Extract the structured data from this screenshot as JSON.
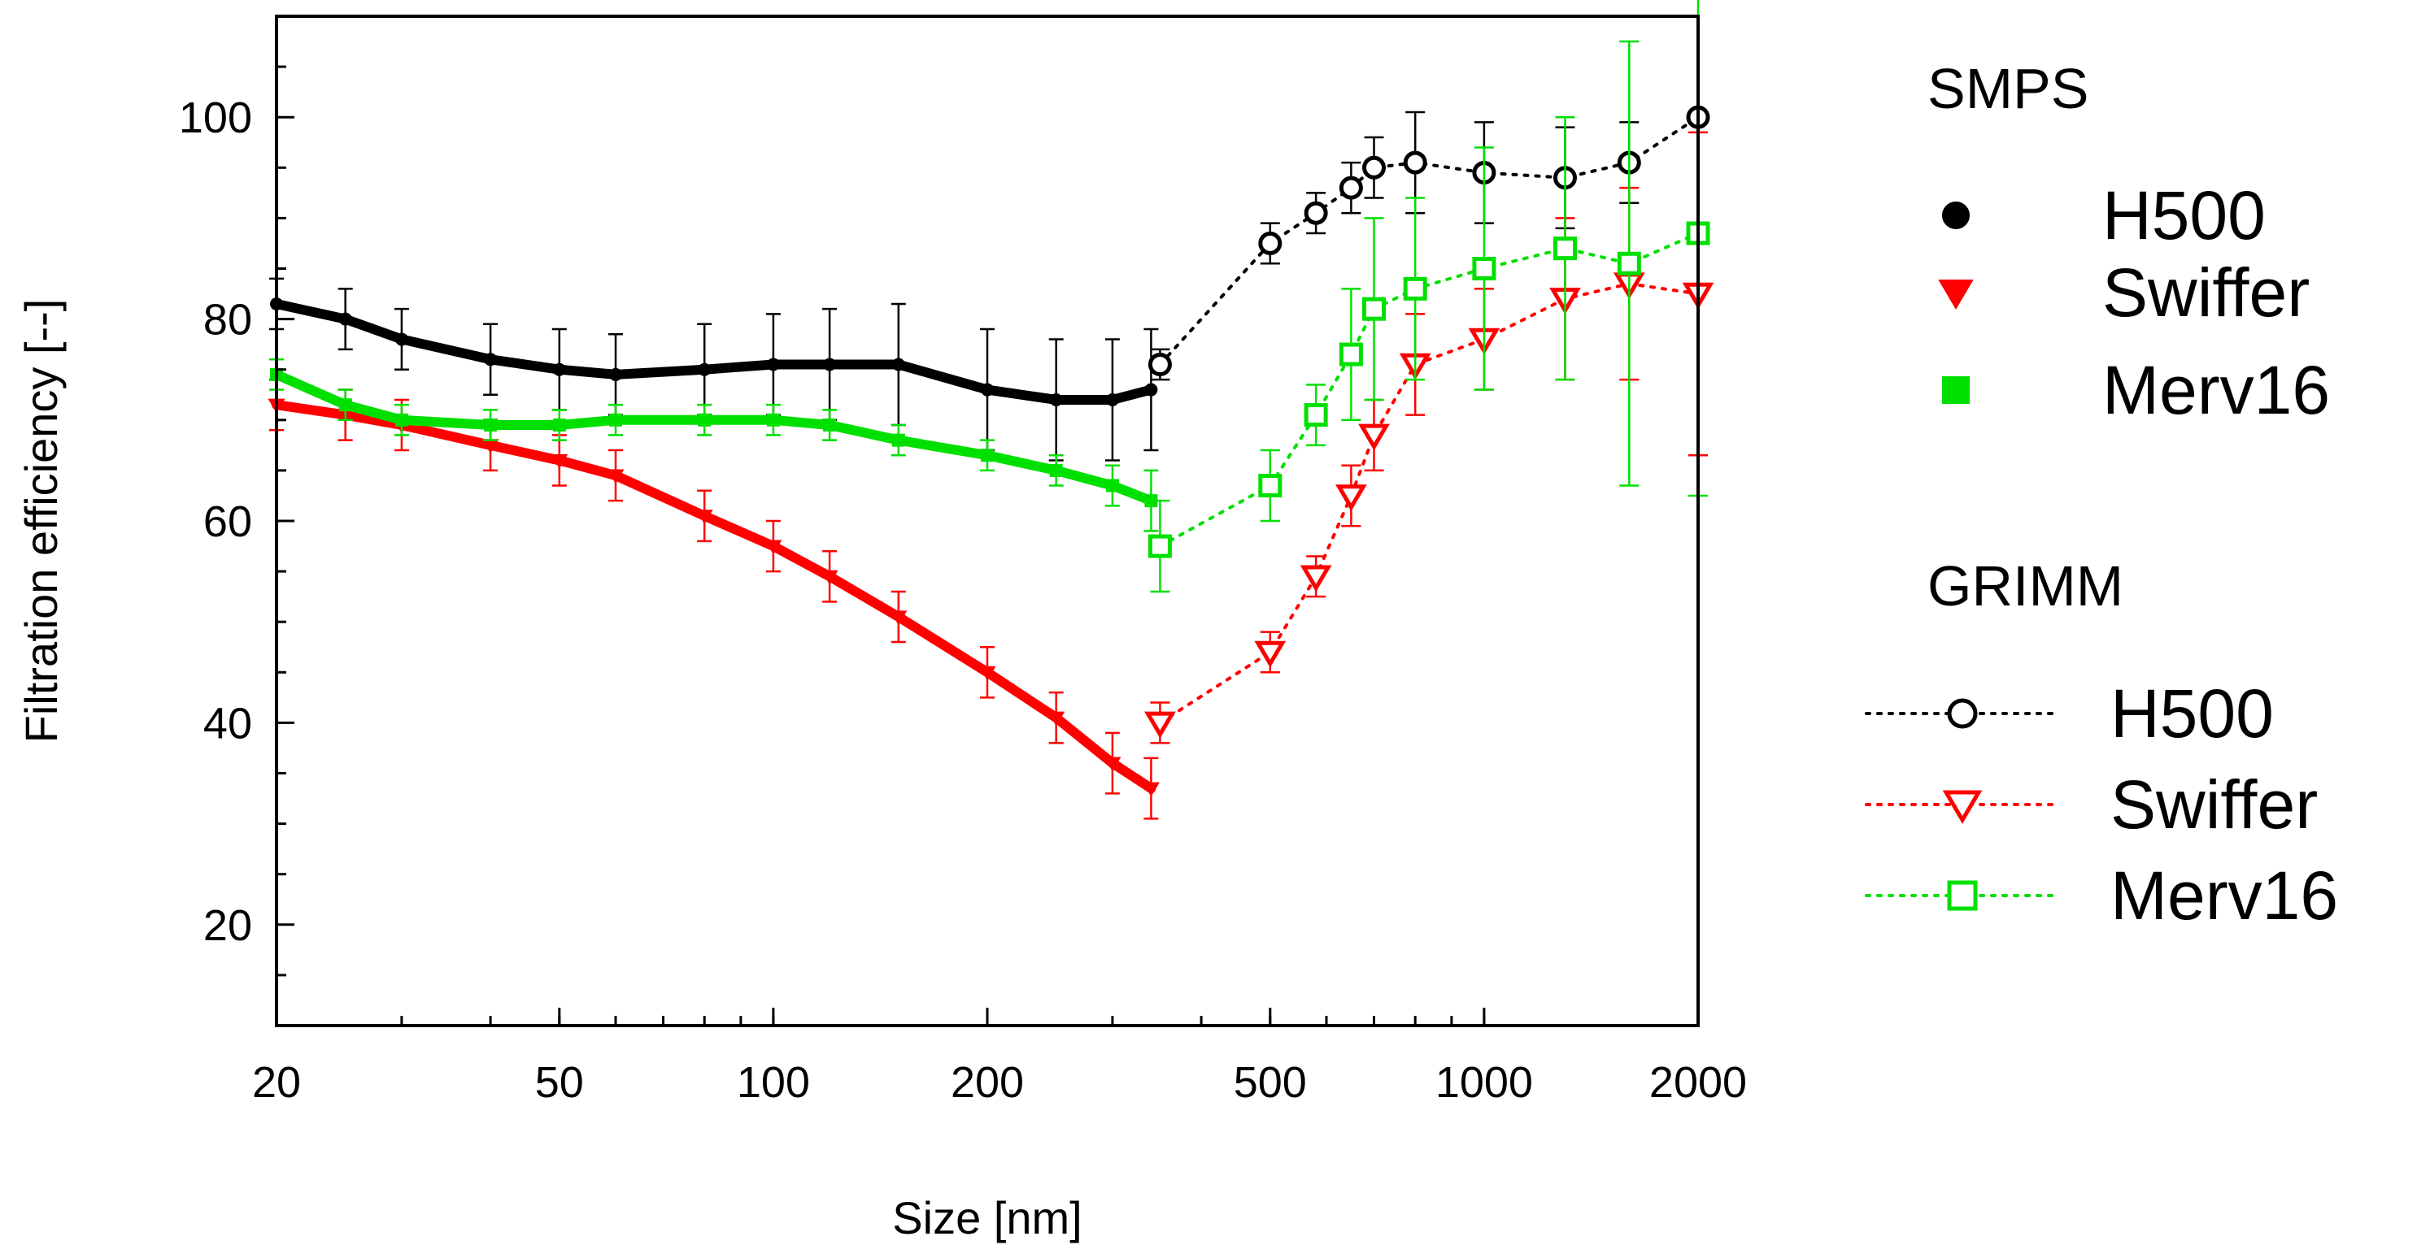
{
  "chart_data": {
    "type": "scatter",
    "title": "",
    "xlabel": "Size [nm]",
    "ylabel": "Filtration efficiency [--]",
    "xscale": "log",
    "xlim": [
      20,
      2000
    ],
    "ylim": [
      10,
      110
    ],
    "xticks": [
      20,
      50,
      100,
      200,
      500,
      1000,
      2000
    ],
    "yticks": [
      20,
      40,
      60,
      80,
      100
    ],
    "grid": false,
    "legend_position": "right",
    "legend_groups": [
      {
        "title": "SMPS",
        "entries": [
          {
            "name": "H500",
            "color": "#000000",
            "marker": "circle",
            "filled": true,
            "line": false
          },
          {
            "name": "Swiffer",
            "color": "#ff0000",
            "marker": "triangle-down",
            "filled": true,
            "line": false
          },
          {
            "name": "Merv16",
            "color": "#00e000",
            "marker": "square",
            "filled": true,
            "line": false
          }
        ]
      },
      {
        "title": "GRIMM",
        "entries": [
          {
            "name": "H500",
            "color": "#000000",
            "marker": "circle",
            "filled": false,
            "line": true
          },
          {
            "name": "Swiffer",
            "color": "#ff0000",
            "marker": "triangle-down",
            "filled": false,
            "line": true
          },
          {
            "name": "Merv16",
            "color": "#00e000",
            "marker": "square",
            "filled": false,
            "line": true
          }
        ]
      }
    ],
    "series": [
      {
        "name": "H500",
        "group": "SMPS",
        "color": "#000000",
        "marker": "circle",
        "filled": true,
        "x": [
          20,
          25,
          30,
          40,
          50,
          60,
          80,
          100,
          120,
          150,
          200,
          250,
          300,
          340
        ],
        "y": [
          81.5,
          80,
          78,
          76,
          75,
          74.5,
          75,
          75.5,
          75.5,
          75.5,
          73,
          72,
          72,
          73
        ],
        "err": [
          2.5,
          3,
          3,
          3.5,
          4,
          4,
          4.5,
          5,
          5.5,
          6,
          6,
          6,
          6,
          6
        ]
      },
      {
        "name": "Swiffer",
        "group": "SMPS",
        "color": "#ff0000",
        "marker": "triangle-down",
        "filled": true,
        "x": [
          20,
          25,
          30,
          40,
          50,
          60,
          80,
          100,
          120,
          150,
          200,
          250,
          300,
          340
        ],
        "y": [
          71.5,
          70.5,
          69.5,
          67.5,
          66,
          64.5,
          60.5,
          57.5,
          54.5,
          50.5,
          45,
          40.5,
          36,
          33.5
        ],
        "err": [
          2.5,
          2.5,
          2.5,
          2.5,
          2.5,
          2.5,
          2.5,
          2.5,
          2.5,
          2.5,
          2.5,
          2.5,
          3,
          3
        ]
      },
      {
        "name": "Merv16",
        "group": "SMPS",
        "color": "#00e000",
        "marker": "square",
        "filled": true,
        "x": [
          20,
          25,
          30,
          40,
          50,
          60,
          80,
          100,
          120,
          150,
          200,
          250,
          300,
          340
        ],
        "y": [
          74.5,
          71.5,
          70,
          69.5,
          69.5,
          70,
          70,
          70,
          69.5,
          68,
          66.5,
          65,
          63.5,
          62
        ],
        "err": [
          1.5,
          1.5,
          1.5,
          1.5,
          1.5,
          1.5,
          1.5,
          1.5,
          1.5,
          1.5,
          1.5,
          1.5,
          2,
          3
        ]
      },
      {
        "name": "H500",
        "group": "GRIMM",
        "color": "#000000",
        "marker": "circle",
        "filled": false,
        "line": "dotted",
        "x": [
          350,
          500,
          580,
          650,
          700,
          800,
          1000,
          1300,
          1600,
          2000
        ],
        "y": [
          75.5,
          87.5,
          90.5,
          93,
          95,
          95.5,
          94.5,
          94,
          95.5,
          100
        ],
        "err": [
          1.5,
          2,
          2,
          2.5,
          3,
          5,
          5,
          5,
          4,
          0
        ]
      },
      {
        "name": "Swiffer",
        "group": "GRIMM",
        "color": "#ff0000",
        "marker": "triangle-down",
        "filled": false,
        "line": "dotted",
        "x": [
          350,
          500,
          580,
          650,
          700,
          800,
          1000,
          1300,
          1600,
          2000
        ],
        "y": [
          40,
          47,
          54.5,
          62.5,
          68.5,
          75.5,
          78,
          82,
          83.5,
          82.5
        ],
        "err": [
          2,
          2,
          2,
          3,
          3.5,
          5,
          5,
          8,
          9.5,
          16
        ]
      },
      {
        "name": "Merv16",
        "group": "GRIMM",
        "color": "#00e000",
        "marker": "square",
        "filled": false,
        "line": "dotted",
        "x": [
          350,
          500,
          580,
          650,
          700,
          800,
          1000,
          1300,
          1600,
          2000
        ],
        "y": [
          57.5,
          63.5,
          70.5,
          76.5,
          81,
          83,
          85,
          87,
          85.5,
          88.5
        ],
        "err": [
          4.5,
          3.5,
          3,
          6.5,
          9,
          9,
          12,
          13,
          22,
          26
        ]
      }
    ]
  }
}
